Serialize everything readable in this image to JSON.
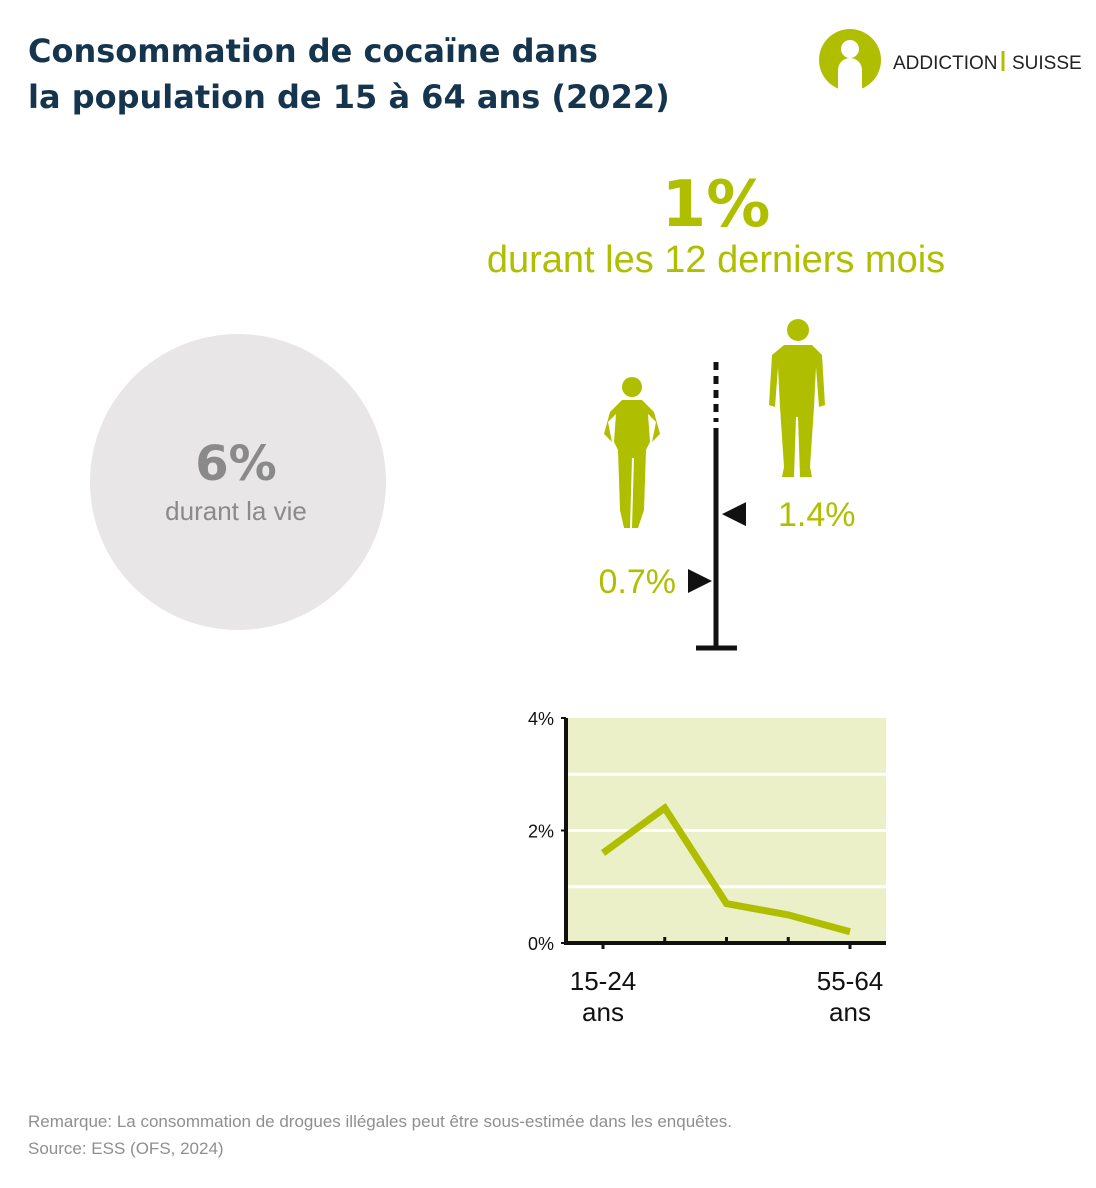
{
  "header": {
    "title": [
      "Consommation de cocaïne dans",
      "la population de 15 à 64 ans (2022)"
    ],
    "logo": [
      "ADDICTION",
      "SUISSE"
    ]
  },
  "stats": {
    "year": {
      "value": "1%",
      "label": "durant les 12 derniers mois"
    },
    "lifetime": {
      "value": "6%",
      "label": "durant la vie"
    }
  },
  "chart_data": [
    {
      "type": "marker",
      "ylim": [
        0,
        2.3
      ],
      "series": [
        {
          "values": [
            0.7
          ],
          "value_labels": [
            "0.7%"
          ],
          "color": "#afbf00",
          "side": "left"
        },
        {
          "values": [
            1.4
          ],
          "value_labels": [
            "1.4%"
          ],
          "color": "#afbf00",
          "side": "right"
        }
      ]
    },
    {
      "type": "line",
      "categories": [
        "15-24 ans",
        null,
        null,
        null,
        "55-64 ans"
      ],
      "values": [
        1.6,
        2.4,
        0.7,
        0.5,
        0.2
      ],
      "color": "#afbf00",
      "background": "#ebf0c8",
      "ylim": [
        0,
        4
      ],
      "yticks": [
        {
          "value": 0,
          "label": "0%"
        },
        {
          "value": 2,
          "label": "2%"
        },
        {
          "value": 4,
          "label": "4%"
        }
      ],
      "grid_values": [
        1,
        2,
        3
      ]
    }
  ],
  "footer": {
    "note": "Remarque: La consommation de drogues illégales peut être sous-estimée dans les enquêtes.",
    "source": "Source: ESS (OFS, 2024)"
  }
}
